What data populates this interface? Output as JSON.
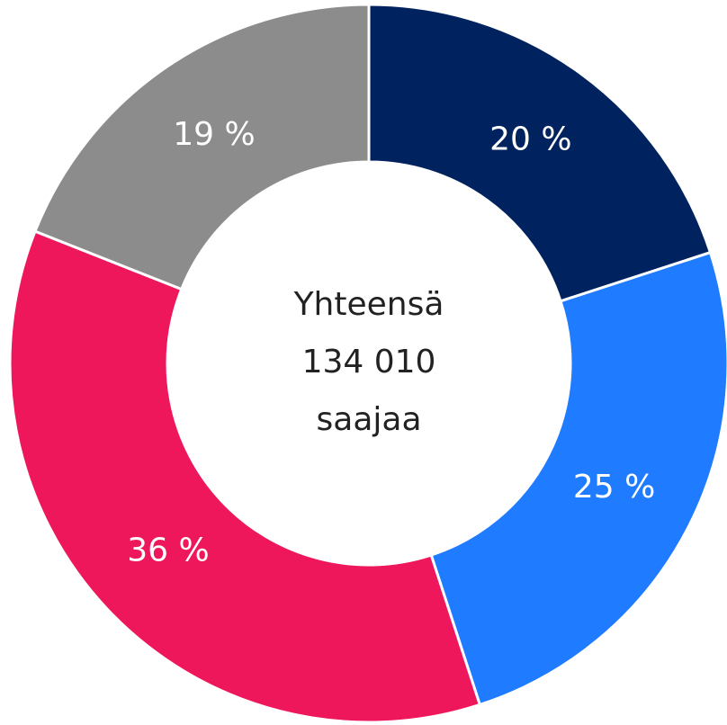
{
  "chart_data": {
    "type": "donut",
    "values": [
      20,
      25,
      36,
      19
    ],
    "value_labels": [
      "20 %",
      "25 %",
      "36 %",
      "19 %"
    ],
    "colors": [
      "#002360",
      "#1f7bff",
      "#ef175b",
      "#8c8c8d"
    ],
    "center_text": [
      "Yhteensä",
      "134 010",
      "saajaa"
    ]
  }
}
